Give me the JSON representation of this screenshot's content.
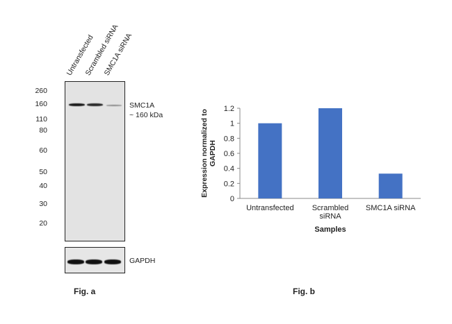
{
  "western_blot": {
    "lanes": [
      "Untransfected",
      "Scrambled siRNA",
      "SMC1A siRNA"
    ],
    "mw_markers": [
      "260",
      "160",
      "110",
      "80",
      "60",
      "50",
      "40",
      "30",
      "20"
    ],
    "target_label": "SMC1A",
    "target_size": "~ 160 kDa",
    "loading_control": "GAPDH",
    "figure_label": "Fig. a"
  },
  "chart_data": {
    "type": "bar",
    "categories": [
      "Untransfected",
      "Scrambled siRNA",
      "SMC1A siRNA"
    ],
    "category_lines": [
      [
        "Untransfected"
      ],
      [
        "Scrambled",
        "siRNA"
      ],
      [
        "SMC1A siRNA"
      ]
    ],
    "values": [
      1.0,
      1.2,
      0.33
    ],
    "ylabel_lines": [
      "Expression  normalized to",
      "GAPDH"
    ],
    "xlabel": "Samples",
    "ylim": [
      0,
      1.2
    ],
    "yticks": [
      "0",
      "0.2",
      "0.4",
      "0.6",
      "0.8",
      "1",
      "1.2"
    ],
    "bar_color": "#4472c4",
    "grid": false,
    "figure_label": "Fig. b"
  }
}
